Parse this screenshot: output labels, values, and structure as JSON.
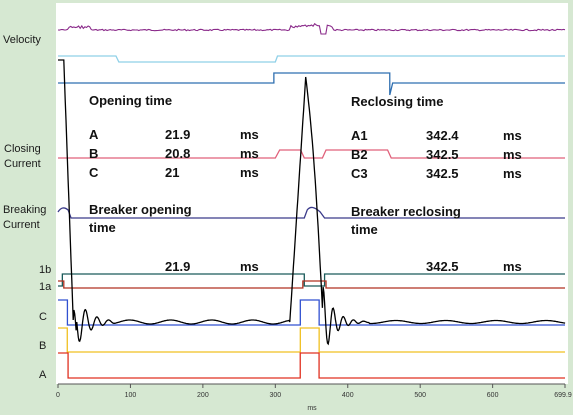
{
  "chart_data": {
    "type": "line",
    "xlabel": "ms",
    "xlim": [
      0,
      699.9
    ],
    "x_ticks": [
      "0",
      "100",
      "200",
      "300",
      "400",
      "500",
      "600",
      "699.9"
    ],
    "grid": false,
    "channel_labels": {
      "velocity": "Velocity",
      "closing_current": "Closing\nCurrent",
      "breaking_current": "Breaking\nCurrent",
      "aux_1b": "1b",
      "aux_1a": "1a",
      "C": "C",
      "B": "B",
      "A": "A"
    },
    "annotations": {
      "opening_title": "Opening time",
      "reclosing_title": "Reclosing time",
      "opening_rows": [
        {
          "phase": "A",
          "value": "21.9",
          "unit": "ms"
        },
        {
          "phase": "B",
          "value": "20.8",
          "unit": "ms"
        },
        {
          "phase": "C",
          "value": "21",
          "unit": "ms"
        }
      ],
      "reclosing_rows": [
        {
          "phase": "A1",
          "value": "342.4",
          "unit": "ms"
        },
        {
          "phase": "B2",
          "value": "342.5",
          "unit": "ms"
        },
        {
          "phase": "C3",
          "value": "342.5",
          "unit": "ms"
        }
      ],
      "breaker_opening_label": "Breaker opening\ntime",
      "breaker_reclosing_label": "Breaker reclosing\ntime",
      "breaker_opening_value": "21.9",
      "breaker_reclosing_value": "342.5",
      "unit": "ms"
    },
    "events_ms": {
      "opening": [
        20.8,
        21.0,
        21.9
      ],
      "reclosing": [
        342.4,
        342.5,
        342.5
      ]
    },
    "colors": {
      "background": "#d6e8d2",
      "velocity": "#8a2a8a",
      "travel_upper": "#8fd0e8",
      "travel_lower": "#2f6fb0",
      "closing_current": "#e0607a",
      "breaking_current": "#3a3a8a",
      "aux_1b": "#1a5a5a",
      "aux_1a": "#b03020",
      "phase_C": "#3050d0",
      "phase_B": "#f0c020",
      "phase_A": "#e03020",
      "motion": "#000000"
    }
  }
}
